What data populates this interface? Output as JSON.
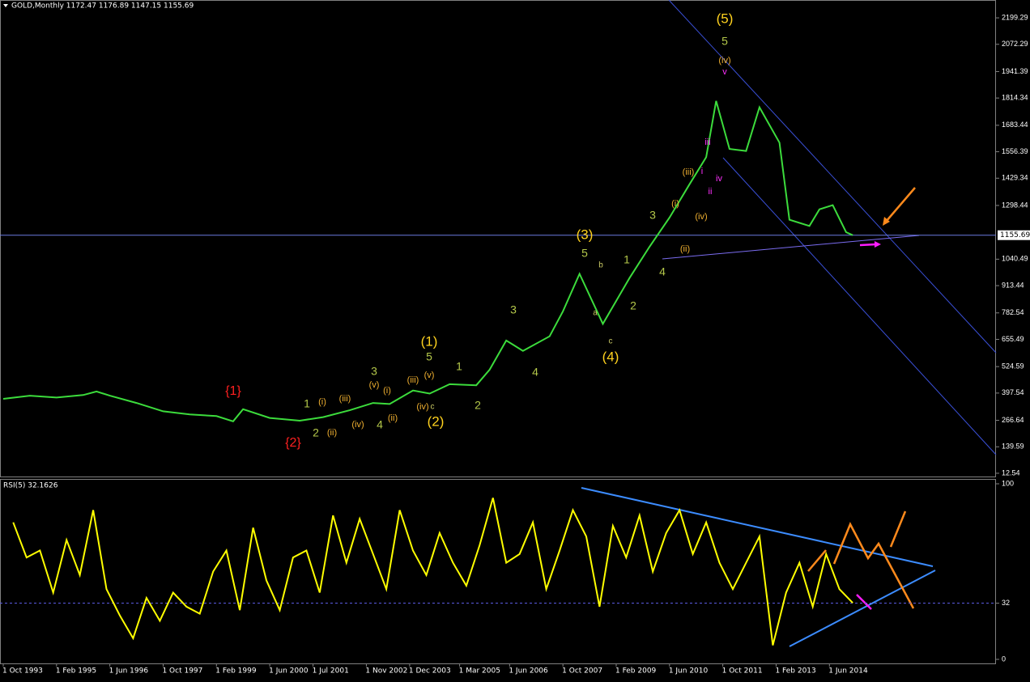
{
  "chart_data": [
    {
      "type": "line",
      "header": "GOLD,Monthly 1172.47 1176.89 1147.15 1155.69",
      "x": [
        "1993-10-01",
        "1994-06-01",
        "1995-02-01",
        "1995-10-01",
        "1996-02-01",
        "1996-06-01",
        "1997-02-01",
        "1997-10-01",
        "1998-06-01",
        "1999-02-01",
        "1999-07-01",
        "1999-10-01",
        "2000-06-01",
        "2001-03-01",
        "2001-10-01",
        "2002-06-01",
        "2003-01-01",
        "2003-06-01",
        "2004-01-01",
        "2004-06-01",
        "2004-12-01",
        "2005-08-01",
        "2005-12-01",
        "2006-05-01",
        "2006-10-01",
        "2007-06-01",
        "2007-10-01",
        "2008-03-01",
        "2008-10-01",
        "2009-06-01",
        "2009-12-01",
        "2010-06-01",
        "2010-12-01",
        "2011-05-01",
        "2011-08-01",
        "2011-12-01",
        "2012-05-01",
        "2012-09-01",
        "2013-03-01",
        "2013-06-01",
        "2013-12-01",
        "2014-03-01",
        "2014-07-01",
        "2014-11-01",
        "2015-01-01"
      ],
      "series": [
        {
          "name": "GOLD",
          "color": "#3cdc3c",
          "values": [
            370,
            385,
            376,
            388,
            405,
            385,
            350,
            310,
            295,
            287,
            262,
            320,
            278,
            265,
            282,
            315,
            350,
            345,
            410,
            395,
            440,
            435,
            510,
            650,
            600,
            670,
            790,
            970,
            730,
            950,
            1100,
            1240,
            1400,
            1530,
            1800,
            1570,
            1560,
            1770,
            1600,
            1230,
            1200,
            1280,
            1300,
            1170,
            1155.69
          ]
        }
      ],
      "ylim": [
        -7,
        2285
      ],
      "yticks": [
        2199.29,
        2072.29,
        1941.39,
        1814.34,
        1683.44,
        1556.39,
        1429.34,
        1298.44,
        1040.49,
        913.44,
        782.54,
        655.49,
        524.59,
        397.54,
        266.64,
        139.59,
        12.54
      ],
      "current_price": 1155.69,
      "xlim": [
        "1993-10-01",
        "2018-08-01"
      ],
      "xticks": [
        {
          "value": "1993-10-01",
          "label": "1 Oct 1993"
        },
        {
          "value": "1995-02-01",
          "label": "1 Feb 1995"
        },
        {
          "value": "1996-06-01",
          "label": "1 Jun 1996"
        },
        {
          "value": "1997-10-01",
          "label": "1 Oct 1997"
        },
        {
          "value": "1999-02-01",
          "label": "1 Feb 1999"
        },
        {
          "value": "2000-06-01",
          "label": "1 Jun 2000"
        },
        {
          "value": "2001-07-01",
          "label": "1 Jul 2001"
        },
        {
          "value": "2002-11-01",
          "label": "1 Nov 2002"
        },
        {
          "value": "2003-12-01",
          "label": "1 Dec 2003"
        },
        {
          "value": "2005-03-01",
          "label": "1 Mar 2005"
        },
        {
          "value": "2006-06-01",
          "label": "1 Jun 2006"
        },
        {
          "value": "2007-10-01",
          "label": "1 Oct 2007"
        },
        {
          "value": "2009-02-01",
          "label": "1 Feb 2009"
        },
        {
          "value": "2010-06-01",
          "label": "1 Jun 2010"
        },
        {
          "value": "2011-10-01",
          "label": "1 Oct 2011"
        },
        {
          "value": "2013-02-01",
          "label": "1 Feb 2013"
        },
        {
          "value": "2014-06-01",
          "label": "1 Jun 2014"
        }
      ],
      "wave_labels": [
        "{1}",
        "{2}",
        "(1)",
        "(2)",
        "(3)",
        "(4)",
        "(5)",
        "5",
        "1",
        "2",
        "3",
        "4",
        "1",
        "2",
        "3",
        "4",
        "5",
        "1",
        "2",
        "3",
        "4",
        "5",
        "(i)",
        "(ii)",
        "(iii)",
        "(iv)",
        "(v)",
        "(i)",
        "(ii)",
        "(iii)",
        "(iv)",
        "(v)",
        "(i)",
        "(ii)",
        "(iii)",
        "(iv)",
        "(iv)",
        "v",
        "iii",
        "i",
        "ii",
        "iv",
        "a",
        "b",
        "c",
        "c"
      ]
    },
    {
      "type": "line",
      "title": "RSI(5) 32.1626",
      "x": [
        "1994-01-01",
        "1994-05-01",
        "1994-09-01",
        "1995-01-01",
        "1995-05-01",
        "1995-09-01",
        "1996-01-01",
        "1996-05-01",
        "1996-09-01",
        "1997-01-01",
        "1997-05-01",
        "1997-09-01",
        "1998-01-01",
        "1998-05-01",
        "1998-09-01",
        "1999-01-01",
        "1999-05-01",
        "1999-09-01",
        "2000-01-01",
        "2000-05-01",
        "2000-09-01",
        "2001-01-01",
        "2001-05-01",
        "2001-09-01",
        "2002-01-01",
        "2002-05-01",
        "2002-09-01",
        "2003-01-01",
        "2003-05-01",
        "2003-09-01",
        "2004-01-01",
        "2004-05-01",
        "2004-09-01",
        "2005-01-01",
        "2005-05-01",
        "2005-09-01",
        "2006-01-01",
        "2006-05-01",
        "2006-09-01",
        "2007-01-01",
        "2007-05-01",
        "2007-09-01",
        "2008-01-01",
        "2008-05-01",
        "2008-09-01",
        "2009-01-01",
        "2009-05-01",
        "2009-09-01",
        "2010-01-01",
        "2010-05-01",
        "2010-09-01",
        "2011-01-01",
        "2011-05-01",
        "2011-09-01",
        "2012-01-01",
        "2012-05-01",
        "2012-09-01",
        "2013-01-01",
        "2013-05-01",
        "2013-09-01",
        "2014-01-01",
        "2014-05-01",
        "2014-09-01",
        "2015-01-01"
      ],
      "series": [
        {
          "name": "RSI(5)",
          "color": "#ffff00",
          "values": [
            78,
            58,
            62,
            38,
            68,
            48,
            85,
            40,
            25,
            12,
            35,
            22,
            38,
            30,
            26,
            50,
            62,
            28,
            75,
            45,
            28,
            58,
            62,
            38,
            82,
            55,
            80,
            60,
            40,
            85,
            62,
            48,
            72,
            55,
            42,
            65,
            92,
            55,
            60,
            78,
            40,
            62,
            85,
            70,
            30,
            76,
            58,
            82,
            50,
            72,
            85,
            60,
            78,
            55,
            40,
            55,
            70,
            8,
            38,
            55,
            30,
            60,
            40,
            32.1626
          ]
        }
      ],
      "ylim": [
        0,
        100
      ],
      "yticks": [
        100,
        32,
        0
      ],
      "level": 32
    }
  ]
}
